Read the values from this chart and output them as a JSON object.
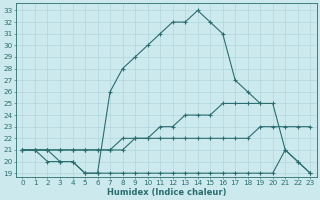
{
  "xlabel": "Humidex (Indice chaleur)",
  "background_color": "#cce9ee",
  "grid_color": "#aad0d8",
  "line_color": "#2a6e6e",
  "xlim": [
    -0.5,
    23.5
  ],
  "ylim": [
    18.7,
    33.6
  ],
  "xticks": [
    0,
    1,
    2,
    3,
    4,
    5,
    6,
    7,
    8,
    9,
    10,
    11,
    12,
    13,
    14,
    15,
    16,
    17,
    18,
    19,
    20,
    21,
    22,
    23
  ],
  "yticks": [
    19,
    20,
    21,
    22,
    23,
    24,
    25,
    26,
    27,
    28,
    29,
    30,
    31,
    32,
    33
  ],
  "lines": [
    {
      "x": [
        0,
        1,
        2,
        3,
        4,
        5,
        6,
        7,
        8,
        9,
        10,
        11,
        12,
        13,
        14,
        15,
        16,
        17,
        18,
        19
      ],
      "y": [
        21,
        21,
        21,
        20,
        20,
        19,
        19,
        26,
        28,
        29,
        30,
        31,
        32,
        32,
        33,
        32,
        31,
        27,
        26,
        25
      ]
    },
    {
      "x": [
        0,
        1,
        2,
        3,
        4,
        5,
        6,
        7,
        8,
        9,
        10,
        11,
        12,
        13,
        14,
        15,
        16,
        17,
        18,
        19,
        20,
        21,
        22,
        23
      ],
      "y": [
        21,
        21,
        20,
        20,
        20,
        19,
        19,
        19,
        19,
        19,
        19,
        19,
        19,
        19,
        19,
        19,
        19,
        19,
        19,
        19,
        19,
        21,
        20,
        19
      ]
    },
    {
      "x": [
        0,
        1,
        2,
        3,
        4,
        5,
        6,
        7,
        8,
        9,
        10,
        11,
        12,
        13,
        14,
        15,
        16,
        17,
        18,
        19,
        20,
        21,
        22,
        23
      ],
      "y": [
        21,
        21,
        21,
        21,
        21,
        21,
        21,
        21,
        22,
        22,
        22,
        23,
        23,
        24,
        24,
        24,
        25,
        25,
        25,
        25,
        25,
        21,
        20,
        19
      ]
    },
    {
      "x": [
        0,
        1,
        2,
        3,
        4,
        5,
        6,
        7,
        8,
        9,
        10,
        11,
        12,
        13,
        14,
        15,
        16,
        17,
        18,
        19,
        20,
        21,
        22,
        23
      ],
      "y": [
        21,
        21,
        21,
        21,
        21,
        21,
        21,
        21,
        21,
        22,
        22,
        22,
        22,
        22,
        22,
        22,
        22,
        22,
        22,
        23,
        23,
        23,
        23,
        23
      ]
    }
  ]
}
